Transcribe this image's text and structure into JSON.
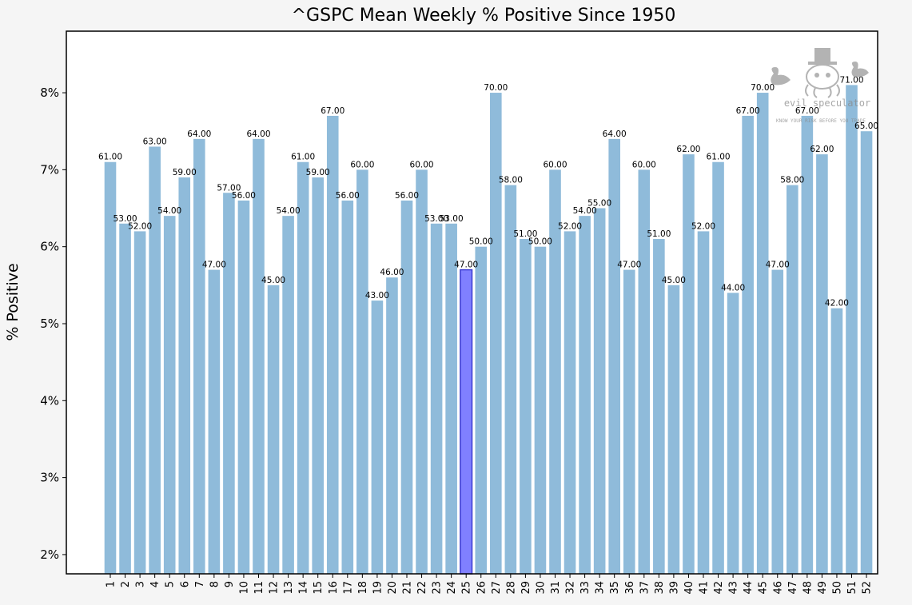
{
  "chart_data": {
    "type": "bar",
    "title": "^GSPC Mean Weekly % Positive Since 1950",
    "ylabel": "% Positive",
    "xlabel": "",
    "ylim": [
      1.75,
      8.8
    ],
    "yticks": [
      2,
      3,
      4,
      5,
      6,
      7,
      8
    ],
    "ytick_labels": [
      "2%",
      "3%",
      "4%",
      "5%",
      "6%",
      "7%",
      "8%"
    ],
    "grid": false,
    "highlight_category": "25",
    "colors": {
      "bar": "#8fbbda",
      "highlight": "#8080ff",
      "highlight_edge": "#3a3ad0",
      "highlight_tick": "#3333ff"
    },
    "categories": [
      "1",
      "2",
      "3",
      "4",
      "5",
      "6",
      "7",
      "8",
      "9",
      "10",
      "11",
      "12",
      "13",
      "14",
      "15",
      "16",
      "17",
      "18",
      "19",
      "20",
      "21",
      "22",
      "23",
      "24",
      "25",
      "26",
      "27",
      "28",
      "29",
      "30",
      "31",
      "32",
      "33",
      "34",
      "35",
      "36",
      "37",
      "38",
      "39",
      "40",
      "41",
      "42",
      "43",
      "44",
      "45",
      "46",
      "47",
      "48",
      "49",
      "50",
      "51",
      "52"
    ],
    "values": [
      7.1,
      6.3,
      6.2,
      7.3,
      6.4,
      6.9,
      7.4,
      5.7,
      6.7,
      6.6,
      7.4,
      5.5,
      6.4,
      7.1,
      6.9,
      7.7,
      6.6,
      7.0,
      5.3,
      5.6,
      6.6,
      7.0,
      6.3,
      6.3,
      5.7,
      6.0,
      8.0,
      6.8,
      6.1,
      6.0,
      7.0,
      6.2,
      6.4,
      6.5,
      7.4,
      5.7,
      7.0,
      6.1,
      5.5,
      7.2,
      6.2,
      7.1,
      5.4,
      7.7,
      8.0,
      5.7,
      6.8,
      7.7,
      7.2,
      5.2,
      8.1,
      7.5
    ],
    "data_labels": [
      "61.00",
      "53.00",
      "52.00",
      "63.00",
      "54.00",
      "59.00",
      "64.00",
      "47.00",
      "57.00",
      "56.00",
      "64.00",
      "45.00",
      "54.00",
      "61.00",
      "59.00",
      "67.00",
      "56.00",
      "60.00",
      "43.00",
      "46.00",
      "56.00",
      "60.00",
      "53.00",
      "53.00",
      "47.00",
      "50.00",
      "70.00",
      "58.00",
      "51.00",
      "50.00",
      "60.00",
      "52.00",
      "54.00",
      "55.00",
      "64.00",
      "47.00",
      "60.00",
      "51.00",
      "45.00",
      "62.00",
      "52.00",
      "61.00",
      "44.00",
      "67.00",
      "70.00",
      "47.00",
      "58.00",
      "67.00",
      "62.00",
      "42.00",
      "71.00",
      "65.00"
    ]
  },
  "watermark": {
    "brand": "evil speculator",
    "tagline": "KNOW YOUR RISK BEFORE YOU TRADE"
  }
}
